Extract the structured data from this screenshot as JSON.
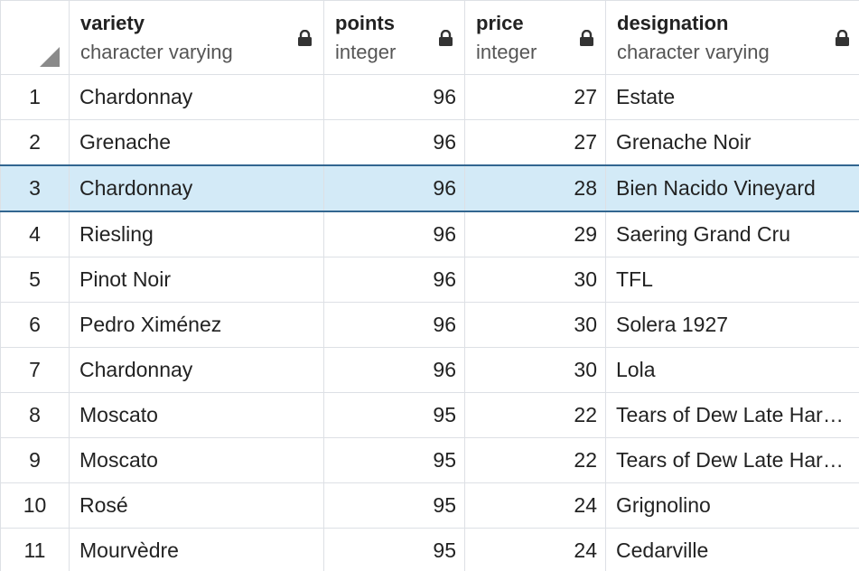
{
  "columns": [
    {
      "name": "variety",
      "type": "character varying"
    },
    {
      "name": "points",
      "type": "integer"
    },
    {
      "name": "price",
      "type": "integer"
    },
    {
      "name": "designation",
      "type": "character varying"
    }
  ],
  "rows": [
    {
      "n": "1",
      "variety": "Chardonnay",
      "points": "96",
      "price": "27",
      "designation": "Estate"
    },
    {
      "n": "2",
      "variety": "Grenache",
      "points": "96",
      "price": "27",
      "designation": "Grenache Noir"
    },
    {
      "n": "3",
      "variety": "Chardonnay",
      "points": "96",
      "price": "28",
      "designation": "Bien Nacido Vineyard"
    },
    {
      "n": "4",
      "variety": "Riesling",
      "points": "96",
      "price": "29",
      "designation": "Saering Grand Cru"
    },
    {
      "n": "5",
      "variety": "Pinot Noir",
      "points": "96",
      "price": "30",
      "designation": "TFL"
    },
    {
      "n": "6",
      "variety": "Pedro Ximénez",
      "points": "96",
      "price": "30",
      "designation": "Solera 1927"
    },
    {
      "n": "7",
      "variety": "Chardonnay",
      "points": "96",
      "price": "30",
      "designation": "Lola"
    },
    {
      "n": "8",
      "variety": "Moscato",
      "points": "95",
      "price": "22",
      "designation": "Tears of Dew Late Har…"
    },
    {
      "n": "9",
      "variety": "Moscato",
      "points": "95",
      "price": "22",
      "designation": "Tears of Dew Late Har…"
    },
    {
      "n": "10",
      "variety": "Rosé",
      "points": "95",
      "price": "24",
      "designation": "Grignolino"
    },
    {
      "n": "11",
      "variety": "Mourvèdre",
      "points": "95",
      "price": "24",
      "designation": "Cedarville"
    }
  ],
  "selected_row": 2,
  "icons": {
    "header": "lock-icon",
    "corner": "select-all-icon"
  },
  "colors": {
    "selected_bg": "#d3eaf7",
    "selected_border": "#326690",
    "grid": "#dde0e5"
  }
}
